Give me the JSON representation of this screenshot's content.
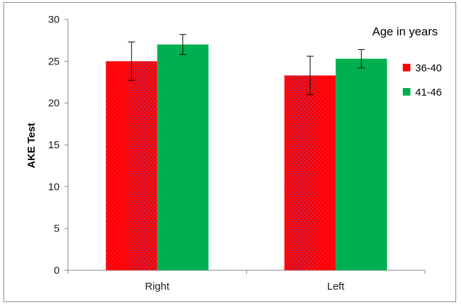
{
  "chart_data": {
    "type": "bar",
    "categories": [
      "Right",
      "Left"
    ],
    "series": [
      {
        "name": "36-40",
        "values": [
          25.0,
          23.3
        ],
        "errors": [
          2.3,
          2.3
        ],
        "color": "#ff0000",
        "pattern": "blue-dots"
      },
      {
        "name": "41-46",
        "values": [
          27.0,
          25.3
        ],
        "errors": [
          1.2,
          1.1
        ],
        "color": "#00b050"
      }
    ],
    "xlabel": "",
    "ylabel": "AKE Test",
    "ylim": [
      0,
      30
    ],
    "yticks": [
      0,
      5,
      10,
      15,
      20,
      25,
      30
    ],
    "legend_title": "Age in years",
    "legend_position": "right",
    "grid": false
  }
}
